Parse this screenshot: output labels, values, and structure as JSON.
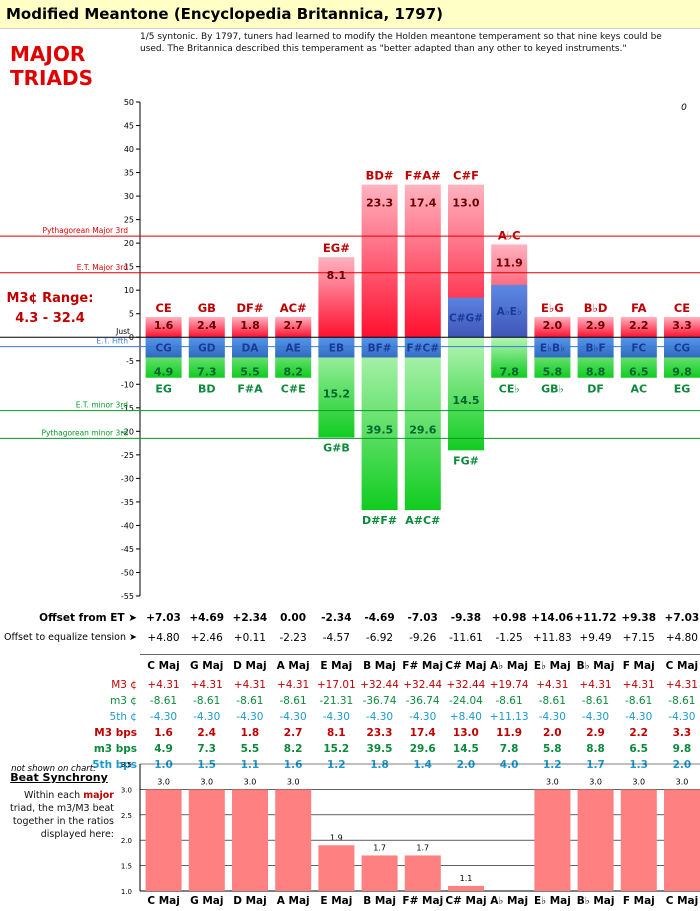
{
  "title": "Modified Meantone (Encyclopedia Britannica, 1797)",
  "description": "1/5 syntonic. By 1797, tuners had learned to modify the Holden meantone temperament so that nine keys could be used. The Britannica described this temperament as \"better adapted than any other to keyed instruments.\"",
  "heading": "MAJOR\nTRIADS",
  "range_label": "M3¢ Range:\n4.3 - 32.4",
  "corner_value": "0",
  "reference_lines": [
    {
      "label": "Pythagorean Major 3rd",
      "value": 21.5,
      "color": "#e00000"
    },
    {
      "label": "E.T. Major 3rd",
      "value": 13.7,
      "color": "#e00000"
    },
    {
      "label": "Just",
      "value": 0,
      "color": "#000000"
    },
    {
      "label": "E.T. Fifth",
      "value": -2.0,
      "color": "#3a7bd5"
    },
    {
      "label": "E.T. minor 3rd",
      "value": -15.6,
      "color": "#0a9a2a"
    },
    {
      "label": "Pythagorean minor 3rd",
      "value": -21.5,
      "color": "#0a9a2a"
    }
  ],
  "chart_data": {
    "type": "bar",
    "ylim": [
      -55,
      50
    ],
    "yticks": [
      50,
      45,
      40,
      35,
      30,
      25,
      20,
      15,
      10,
      5,
      0,
      -5,
      -10,
      -15,
      -20,
      -25,
      -30,
      -35,
      -40,
      -45,
      -50,
      -55
    ],
    "categories": [
      "C Maj",
      "G Maj",
      "D Maj",
      "A Maj",
      "E Maj",
      "B Maj",
      "F# Maj",
      "C# Maj",
      "A♭ Maj",
      "E♭ Maj",
      "B♭ Maj",
      "F Maj",
      "C Maj"
    ],
    "major_third_labels": [
      "CE",
      "GB",
      "DF#",
      "AC#",
      "EG#",
      "BD#",
      "F#A#",
      "C#F",
      "A♭C",
      "E♭G",
      "B♭D",
      "FA",
      "CE"
    ],
    "major_third_values": [
      1.6,
      2.4,
      1.8,
      2.7,
      8.1,
      23.3,
      17.4,
      13.0,
      11.9,
      2.0,
      2.9,
      2.2,
      3.3
    ],
    "major_third_bar_heights": [
      4.31,
      4.31,
      4.31,
      4.31,
      17.01,
      32.44,
      32.44,
      32.44,
      19.74,
      4.31,
      4.31,
      4.31,
      4.31
    ],
    "fifth_labels": [
      "CG",
      "GD",
      "DA",
      "AE",
      "EB",
      "BF#",
      "F#C#",
      "C#G#",
      "A♭E♭",
      "E♭B♭",
      "B♭F",
      "FC",
      "CG"
    ],
    "fifth_values": [
      -4.3,
      -4.3,
      -4.3,
      -4.3,
      -4.3,
      -4.3,
      -4.3,
      8.4,
      11.13,
      -4.3,
      -4.3,
      -4.3,
      -4.3
    ],
    "minor_third_labels": [
      "EG",
      "BD",
      "F#A",
      "C#E",
      "G#B",
      "D#F#",
      "A#C#",
      "FG#",
      "CE♭",
      "GB♭",
      "DF",
      "AC",
      "EG"
    ],
    "minor_third_values": [
      4.9,
      7.3,
      5.5,
      8.2,
      15.2,
      39.5,
      29.6,
      14.5,
      7.8,
      5.8,
      8.8,
      6.5,
      9.8
    ],
    "minor_third_bar_heights": [
      -8.61,
      -8.61,
      -8.61,
      -8.61,
      -21.31,
      -36.74,
      -36.74,
      -24.04,
      -8.61,
      -8.61,
      -8.61,
      -8.61,
      -8.61
    ],
    "beat_synchrony": {
      "ylim": [
        1.0,
        3.5
      ],
      "yticks": [
        "3.5",
        "3.0",
        "2.5",
        "2.0",
        "1.5",
        "1.0"
      ],
      "values": [
        3.0,
        3.0,
        3.0,
        3.0,
        1.9,
        1.7,
        1.7,
        1.1,
        null,
        3.0,
        3.0,
        3.0,
        3.0
      ],
      "labels": [
        "3.0",
        "3.0",
        "3.0",
        "3.0",
        "1.9",
        "1.7",
        "1.7",
        "1.1",
        "",
        "3.0",
        "3.0",
        "3.0",
        "3.0"
      ]
    }
  },
  "table": {
    "offset_et": {
      "label": "Offset from ET ➤",
      "values": [
        "+7.03",
        "+4.69",
        "+2.34",
        "0.00",
        "-2.34",
        "-4.69",
        "-7.03",
        "-9.38",
        "+0.98",
        "+14.06",
        "+11.72",
        "+9.38",
        "+7.03"
      ]
    },
    "offset_eq": {
      "label": "Offset to equalize tension ➤",
      "values": [
        "+4.80",
        "+2.46",
        "+0.11",
        "-2.23",
        "-4.57",
        "-6.92",
        "-9.26",
        "-11.61",
        "-1.25",
        "+11.83",
        "+9.49",
        "+7.15",
        "+4.80"
      ]
    },
    "keys": [
      "C Maj",
      "G Maj",
      "D Maj",
      "A Maj",
      "E Maj",
      "B Maj",
      "F# Maj",
      "C# Maj",
      "A♭ Maj",
      "E♭ Maj",
      "B♭ Maj",
      "F Maj",
      "C Maj"
    ],
    "m3c": {
      "label": "M3 ¢",
      "values": [
        "+4.31",
        "+4.31",
        "+4.31",
        "+4.31",
        "+17.01",
        "+32.44",
        "+32.44",
        "+32.44",
        "+19.74",
        "+4.31",
        "+4.31",
        "+4.31",
        "+4.31"
      ]
    },
    "m3c_minor": {
      "label": "m3 ¢",
      "values": [
        "-8.61",
        "-8.61",
        "-8.61",
        "-8.61",
        "-21.31",
        "-36.74",
        "-36.74",
        "-24.04",
        "-8.61",
        "-8.61",
        "-8.61",
        "-8.61",
        "-8.61"
      ]
    },
    "fifth_c": {
      "label": "5th ¢",
      "values": [
        "-4.30",
        "-4.30",
        "-4.30",
        "-4.30",
        "-4.30",
        "-4.30",
        "-4.30",
        "+8.40",
        "+11.13",
        "-4.30",
        "-4.30",
        "-4.30",
        "-4.30"
      ]
    },
    "M3bps": {
      "label": "M3 bps",
      "values": [
        "1.6",
        "2.4",
        "1.8",
        "2.7",
        "8.1",
        "23.3",
        "17.4",
        "13.0",
        "11.9",
        "2.0",
        "2.9",
        "2.2",
        "3.3"
      ]
    },
    "m3bps": {
      "label": "m3 bps",
      "values": [
        "4.9",
        "7.3",
        "5.5",
        "8.2",
        "15.2",
        "39.5",
        "29.6",
        "14.5",
        "7.8",
        "5.8",
        "8.8",
        "6.5",
        "9.8"
      ]
    },
    "fifth_bps": {
      "label": "5th bps",
      "values": [
        "1.0",
        "1.5",
        "1.1",
        "1.6",
        "1.2",
        "1.8",
        "1.4",
        "2.0",
        "4.0",
        "1.2",
        "1.7",
        "1.3",
        "2.0"
      ]
    },
    "not_shown": "not shown on chart:"
  },
  "beat": {
    "title": "Beat Synchrony",
    "desc_pre": "Within each ",
    "desc_bold": "major",
    "desc_post": " triad, the m3/M3 beat together in the ratios displayed here:"
  },
  "colors": {
    "red": "#ff2a3c",
    "green": "#22cc44",
    "blue": "#3a7bd5",
    "label_red": "#c00000",
    "label_green": "#0a8a3a",
    "label_blue": "#1a3a9a"
  }
}
